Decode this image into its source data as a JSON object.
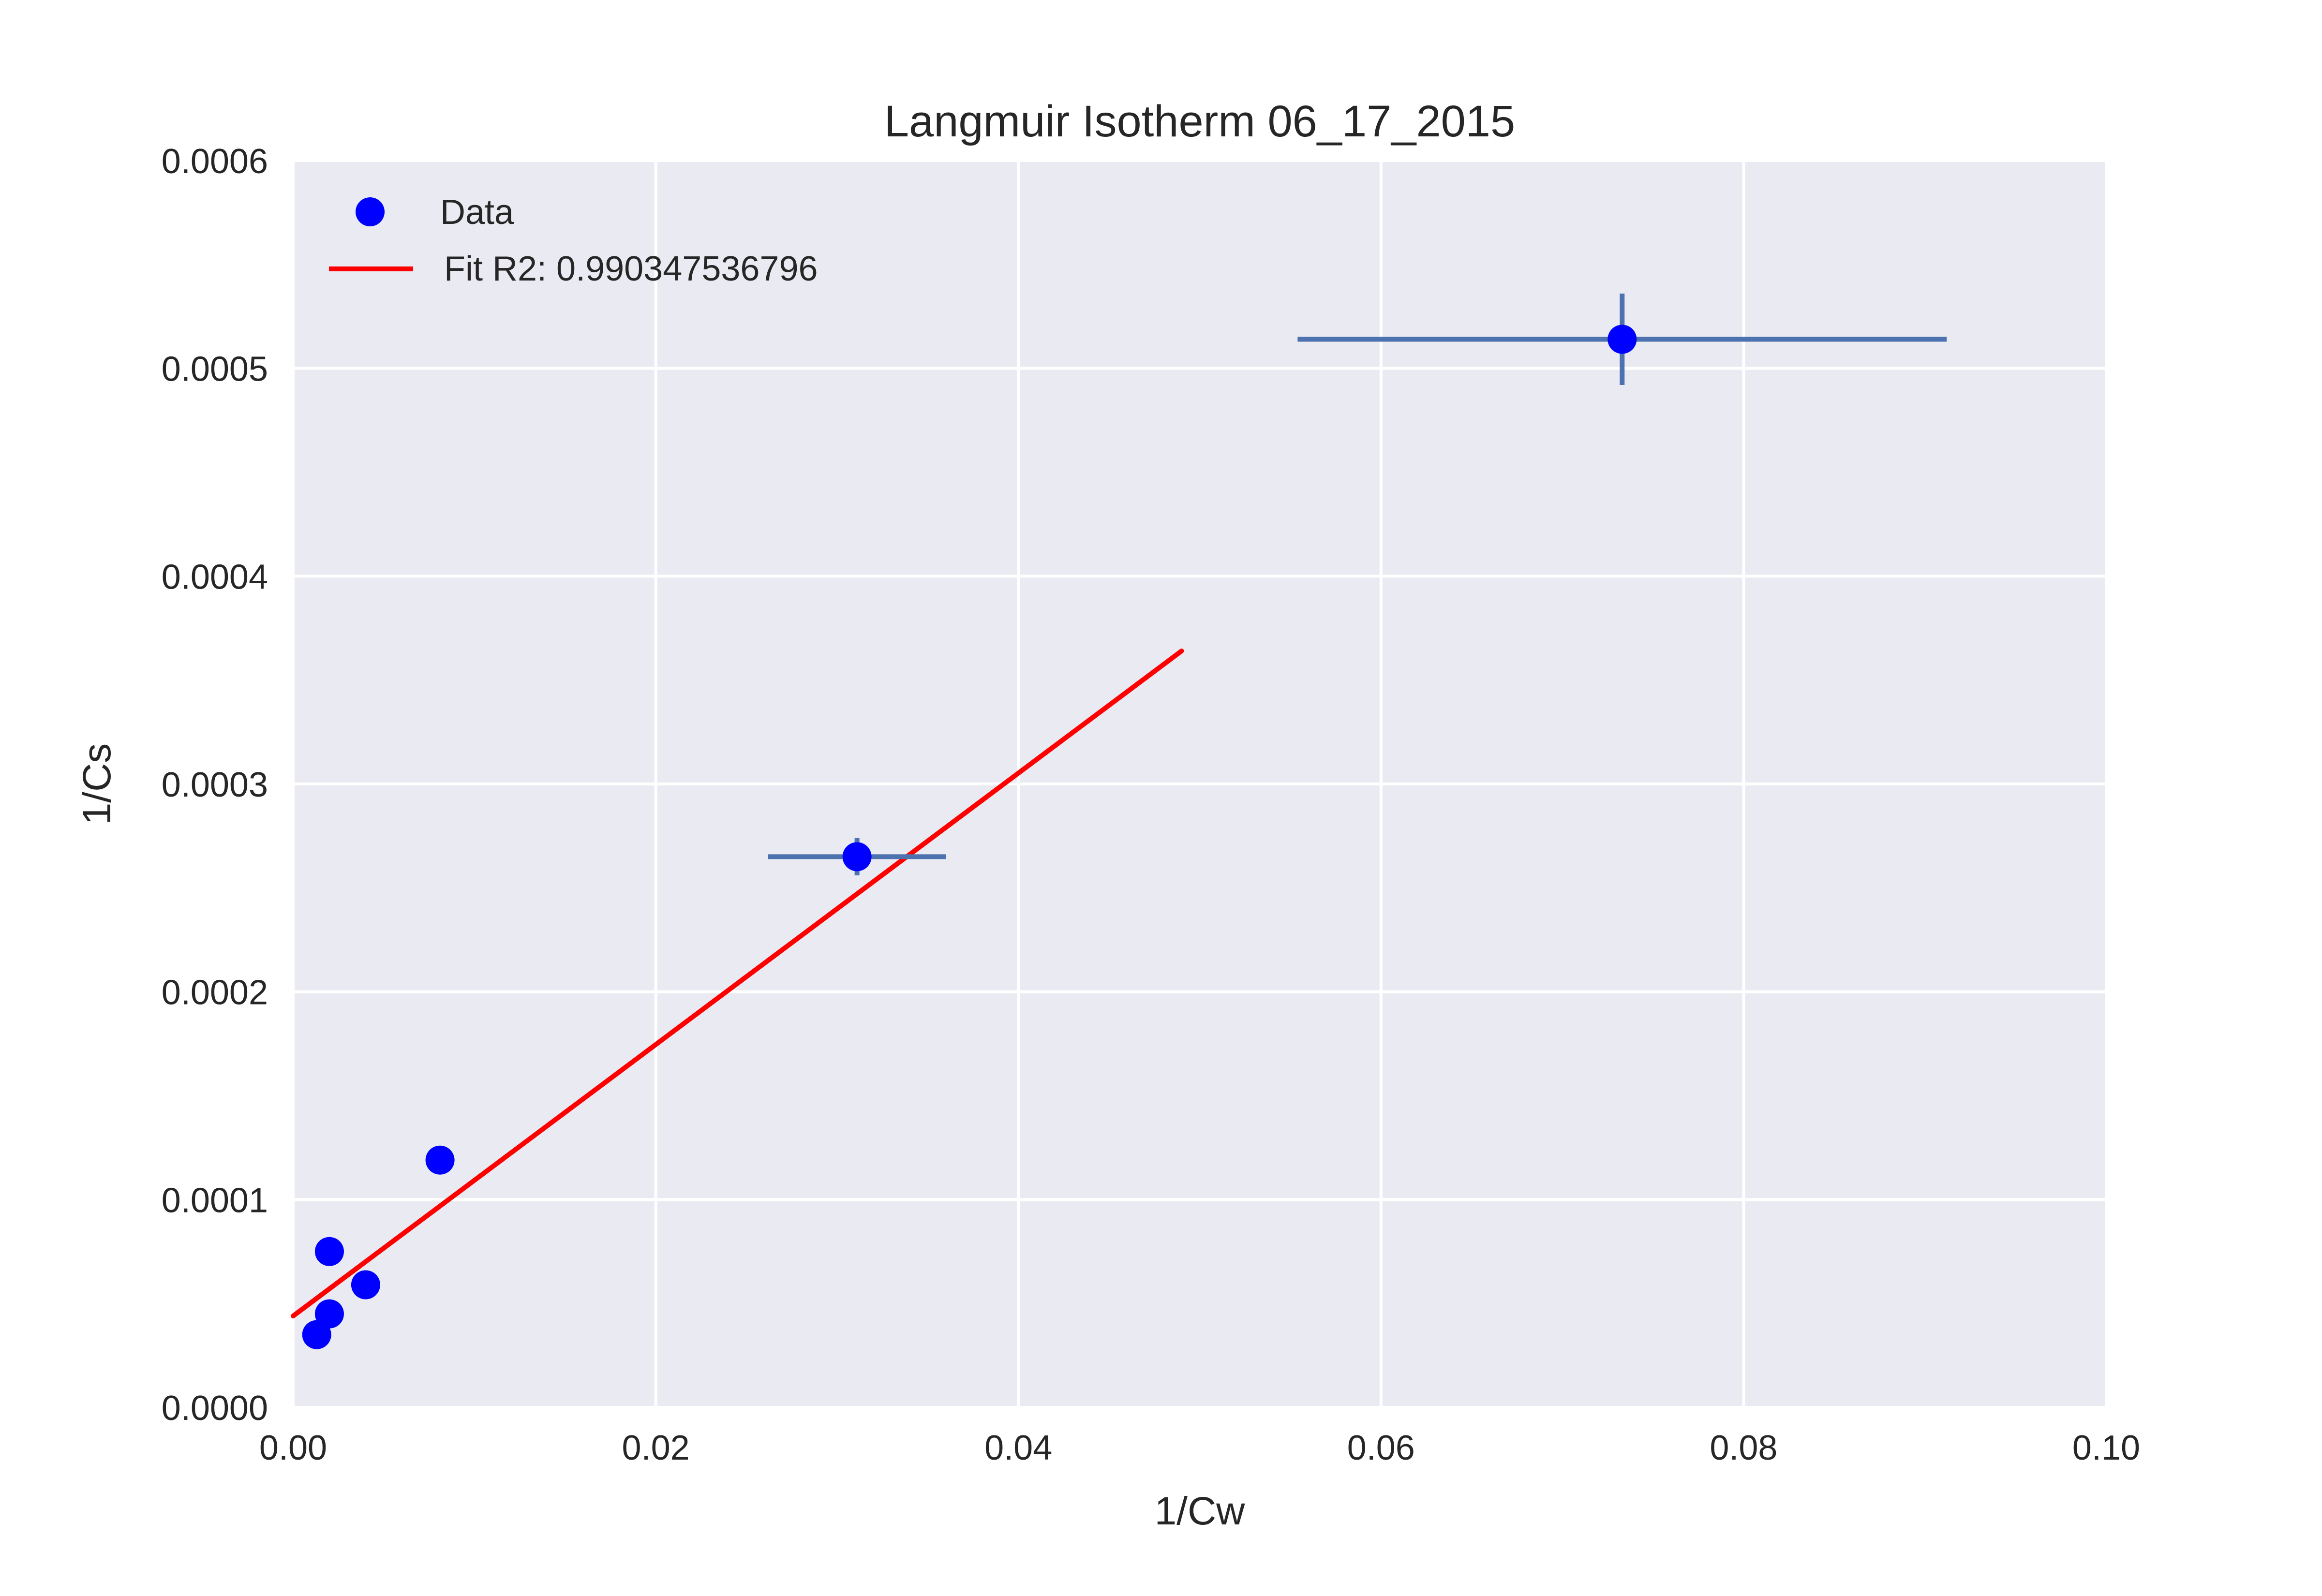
{
  "chart_data": {
    "type": "scatter",
    "title": "Langmuir Isotherm 06_17_2015",
    "xlabel": "1/Cw",
    "ylabel": "1/Cs",
    "xlim": [
      0.0,
      0.1
    ],
    "ylim": [
      0.0,
      0.0006
    ],
    "x_ticks": [
      0.0,
      0.02,
      0.04,
      0.06,
      0.08,
      0.1
    ],
    "x_tick_labels": [
      "0.00",
      "0.02",
      "0.04",
      "0.06",
      "0.08",
      "0.10"
    ],
    "y_ticks": [
      0.0,
      0.0001,
      0.0002,
      0.0003,
      0.0004,
      0.0005,
      0.0006
    ],
    "y_tick_labels": [
      "0.0000",
      "0.0001",
      "0.0002",
      "0.0003",
      "0.0004",
      "0.0005",
      "0.0006"
    ],
    "grid": true,
    "legend_position": "top-left",
    "background_color": "#eaeaf2",
    "grid_color": "#ffffff",
    "series": [
      {
        "name": "Data",
        "kind": "points",
        "color": "#0000ff",
        "points": [
          {
            "x": 0.0013,
            "y": 3.5e-05
          },
          {
            "x": 0.002,
            "y": 4.5e-05
          },
          {
            "x": 0.002,
            "y": 7.5e-05
          },
          {
            "x": 0.004,
            "y": 5.9e-05
          },
          {
            "x": 0.0081,
            "y": 0.000119
          },
          {
            "x": 0.0311,
            "y": 0.000265,
            "xerr": 0.0049,
            "yerr": 9e-06
          },
          {
            "x": 0.0733,
            "y": 0.000514,
            "xerr": 0.0179,
            "yerr": 2.2e-05
          }
        ]
      },
      {
        "name": "Fit R2: 0.990347536796",
        "kind": "line",
        "color": "#ff0000",
        "x": [
          0.0,
          0.049
        ],
        "y": [
          4.4e-05,
          0.000364
        ]
      }
    ],
    "errorbar_color": "#4c72b0"
  }
}
